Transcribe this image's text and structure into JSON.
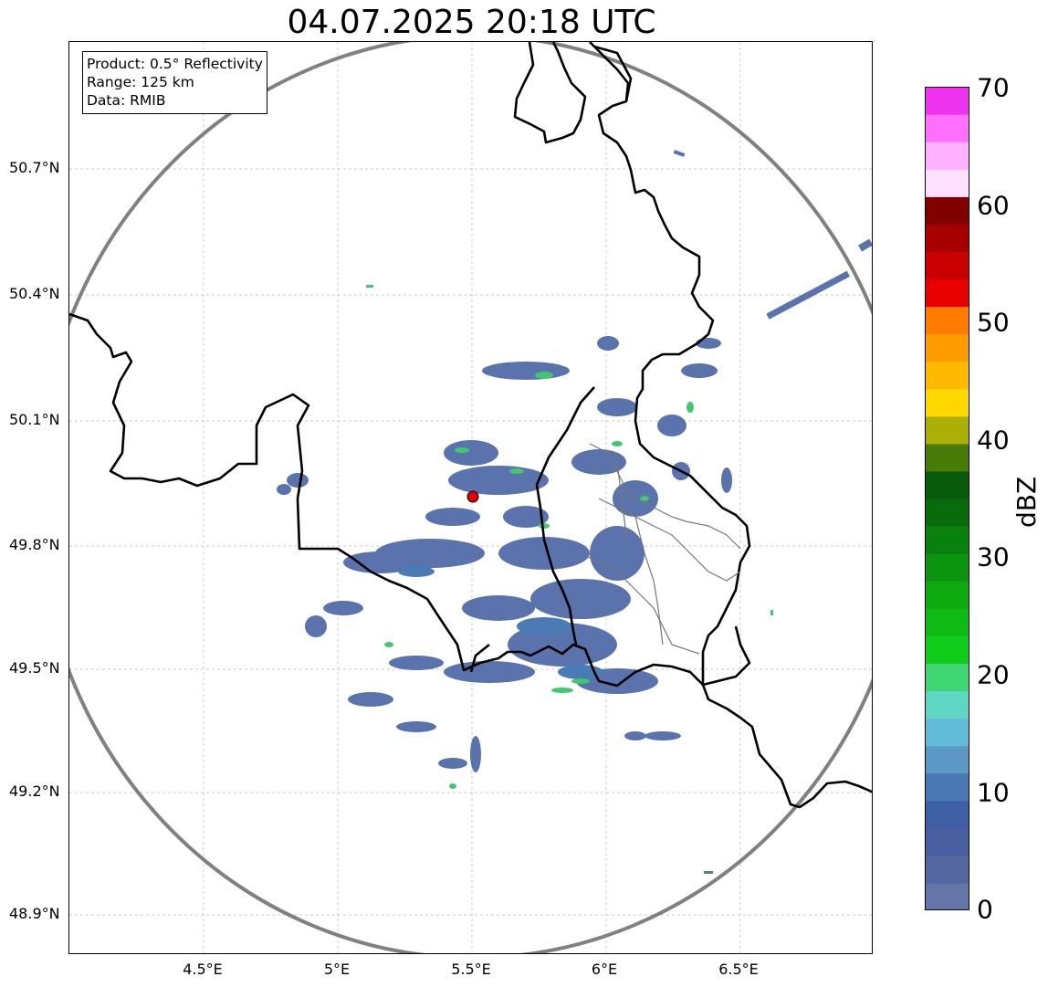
{
  "title": "04.07.2025 20:18 UTC",
  "info": {
    "product": "Product: 0.5° Reflectivity",
    "range": "Range: 125 km",
    "data": "Data: RMIB"
  },
  "axes": {
    "lat_ticks": [
      "50.7°N",
      "50.4°N",
      "50.1°N",
      "49.8°N",
      "49.5°N",
      "49.2°N",
      "48.9°N"
    ],
    "lon_ticks": [
      "4.5°E",
      "5°E",
      "5.5°E",
      "6°E",
      "6.5°E"
    ]
  },
  "radar": {
    "label": "radar-site",
    "color": "#e00000"
  },
  "colorbar": {
    "unit": "dBZ",
    "tick_labels": [
      "70",
      "60",
      "50",
      "40",
      "30",
      "20",
      "10",
      "0"
    ],
    "colors": [
      "#6675a8",
      "#5566a0",
      "#4a5fa0",
      "#4060a5",
      "#4a78b2",
      "#5b98c6",
      "#62bcd8",
      "#5fd6c4",
      "#3fd673",
      "#12cc1c",
      "#0fba14",
      "#0ea80f",
      "#0c9410",
      "#0a800e",
      "#086c0c",
      "#065a0a",
      "#4a7a08",
      "#aab008",
      "#ffd800",
      "#ffba00",
      "#ff9d00",
      "#ff7c00",
      "#e80000",
      "#c80000",
      "#a80000",
      "#800000",
      "#ffe0ff",
      "#ffb0ff",
      "#ff70ff",
      "#ee33ee"
    ]
  }
}
